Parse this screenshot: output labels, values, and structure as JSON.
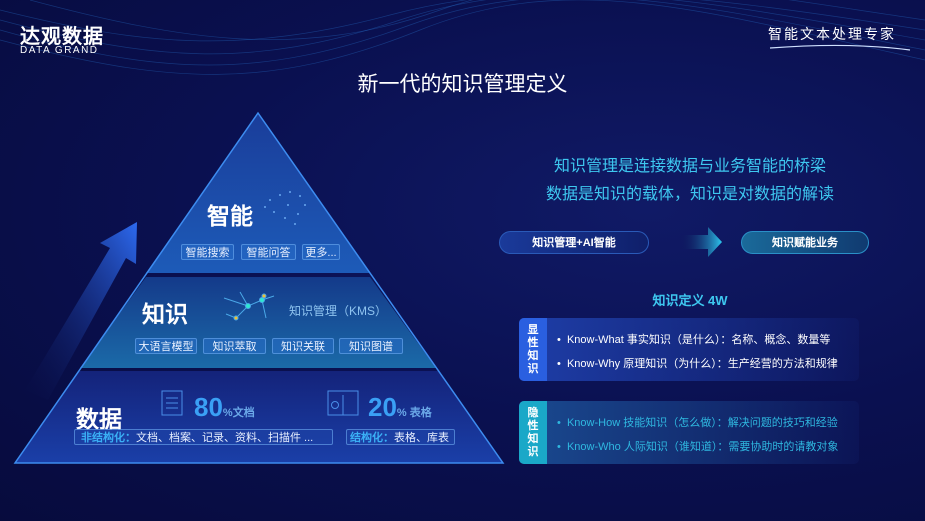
{
  "header": {
    "logo_cn": "达观数据",
    "logo_en": "DATA GRAND",
    "slogan": "智能文本处理专家",
    "title": "新一代的知识管理定义"
  },
  "pyramid": {
    "top": {
      "title": "智能",
      "tags": [
        "智能搜索",
        "智能问答",
        "更多..."
      ],
      "icon": "brain-network-icon"
    },
    "middle": {
      "title": "知识",
      "kms_label": "知识管理（KMS）",
      "tags": [
        "大语言模型",
        "知识萃取",
        "知识关联",
        "知识图谱"
      ],
      "icon": "knowledge-graph-icon"
    },
    "bottom": {
      "title": "数据",
      "doc_percent": "80",
      "doc_suffix": "%文档",
      "table_percent": "20",
      "table_suffix": "% 表格",
      "unstructured_label": "非结构化：",
      "unstructured_items": "文档、档案、记录、资料、扫描件 ...",
      "structured_label": "结构化：",
      "structured_items": "表格、库表"
    }
  },
  "right": {
    "line1": "知识管理是连接数据与业务智能的桥梁",
    "line2": "数据是知识的载体，知识是对数据的解读",
    "pill_left": "知识管理+AI智能",
    "pill_right": "知识赋能业务",
    "def_title": "知识定义 4W",
    "explicit": {
      "label": "显性知识",
      "items": [
        "Know-What 事实知识（是什么）：名称、概念、数量等",
        "Know-Why  原理知识（为什么）：生产经营的方法和规律"
      ]
    },
    "tacit": {
      "label": "隐性知识",
      "items": [
        "Know-How  技能知识（怎么做）：解决问题的技巧和经验",
        "Know-Who  人际知识（谁知道）：需要协助时的请教对象"
      ]
    }
  },
  "colors": {
    "accent_cyan": "#3ec8f0",
    "explicit_blue": "#2a5fe0",
    "tacit_teal": "#1aa8c8",
    "background": "#0a0f4a"
  }
}
